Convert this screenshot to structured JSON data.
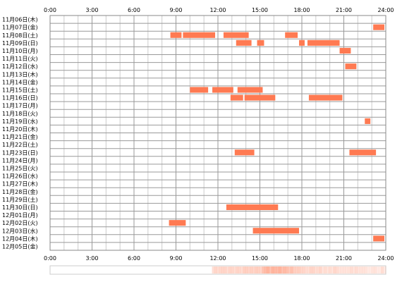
{
  "chart_data": {
    "type": "timeline",
    "x_unit": "hour",
    "x_range": [
      0,
      24
    ],
    "x_ticks": [
      "0:00",
      "3:00",
      "6:00",
      "9:00",
      "12:00",
      "15:00",
      "18:00",
      "21:00",
      "24:00"
    ],
    "rows": [
      {
        "label": "11月06日(木)",
        "segments": []
      },
      {
        "label": "11月07日(金)",
        "segments": [
          [
            23.1,
            23.9
          ]
        ]
      },
      {
        "label": "11月08日(土)",
        "segments": [
          [
            8.6,
            9.4
          ],
          [
            9.5,
            11.8
          ],
          [
            12.4,
            14.2
          ],
          [
            16.8,
            17.7
          ]
        ]
      },
      {
        "label": "11月09日(日)",
        "segments": [
          [
            13.3,
            14.4
          ],
          [
            14.8,
            15.3
          ],
          [
            17.8,
            18.2
          ],
          [
            18.4,
            20.7
          ]
        ]
      },
      {
        "label": "11月10日(月)",
        "segments": [
          [
            20.7,
            21.5
          ]
        ]
      },
      {
        "label": "11月11日(火)",
        "segments": []
      },
      {
        "label": "11月12日(水)",
        "segments": [
          [
            21.1,
            21.9
          ]
        ]
      },
      {
        "label": "11月13日(木)",
        "segments": []
      },
      {
        "label": "11月14日(金)",
        "segments": []
      },
      {
        "label": "11月15日(土)",
        "segments": [
          [
            10.0,
            11.3
          ],
          [
            11.6,
            13.1
          ],
          [
            13.4,
            15.2
          ]
        ]
      },
      {
        "label": "11月16日(日)",
        "segments": [
          [
            12.9,
            13.8
          ],
          [
            13.9,
            16.1
          ],
          [
            18.5,
            20.9
          ]
        ]
      },
      {
        "label": "11月17日(月)",
        "segments": []
      },
      {
        "label": "11月18日(火)",
        "segments": []
      },
      {
        "label": "11月19日(水)",
        "segments": [
          [
            22.5,
            22.9
          ]
        ]
      },
      {
        "label": "11月20日(木)",
        "segments": []
      },
      {
        "label": "11月21日(金)",
        "segments": []
      },
      {
        "label": "11月22日(土)",
        "segments": []
      },
      {
        "label": "11月23日(日)",
        "segments": [
          [
            13.2,
            14.6
          ],
          [
            21.4,
            23.3
          ]
        ]
      },
      {
        "label": "11月24日(月)",
        "segments": []
      },
      {
        "label": "11月25日(火)",
        "segments": []
      },
      {
        "label": "11月26日(水)",
        "segments": []
      },
      {
        "label": "11月27日(木)",
        "segments": []
      },
      {
        "label": "11月28日(金)",
        "segments": []
      },
      {
        "label": "11月29日(土)",
        "segments": []
      },
      {
        "label": "11月30日(日)",
        "segments": [
          [
            12.6,
            16.3
          ]
        ]
      },
      {
        "label": "12月01日(月)",
        "segments": []
      },
      {
        "label": "12月02日(火)",
        "segments": [
          [
            8.5,
            9.7
          ]
        ]
      },
      {
        "label": "12月03日(水)",
        "segments": [
          [
            14.5,
            17.8
          ]
        ]
      },
      {
        "label": "12月04日(木)",
        "segments": [
          [
            23.1,
            23.9
          ]
        ]
      },
      {
        "label": "12月05日(金)",
        "segments": []
      }
    ],
    "density": [
      0,
      0,
      0,
      0,
      0,
      0,
      0,
      0,
      0,
      0,
      0,
      0,
      0,
      0,
      0,
      0,
      0,
      0,
      0,
      0,
      0,
      0,
      0,
      0,
      0,
      0,
      0,
      0,
      0,
      0,
      0,
      0,
      0,
      0,
      0,
      0,
      0,
      0,
      0,
      0,
      0,
      0,
      0,
      0,
      0,
      0,
      0,
      0,
      0,
      0,
      0,
      0,
      0,
      0,
      0,
      0,
      0,
      0,
      0,
      0,
      0,
      0,
      0,
      0,
      0,
      0,
      0,
      0,
      0.25,
      0.3,
      0.25,
      0.3,
      0.3,
      0.3,
      0.25,
      0.3,
      0.3,
      0.25,
      0.3,
      0.3,
      0.25,
      0.35,
      0.35,
      0.3,
      0.35,
      0.3,
      0.35,
      0.35,
      0.3,
      0.45,
      0.5,
      0.55,
      0.45,
      0.55,
      0.5,
      0.5,
      0.55,
      0.45,
      0.5,
      0.45,
      0.4,
      0.45,
      0.35,
      0.35,
      0.35,
      0.3,
      0.3,
      0.25,
      0.25,
      0.3,
      0.3,
      0.25,
      0.25,
      0.3,
      0.2,
      0.25,
      0.2,
      0.25,
      0.2,
      0.3,
      0.25,
      0.2,
      0.2,
      0.2,
      0.2,
      0.2,
      0.25,
      0.2,
      0.25,
      0.2,
      0.2,
      0.2,
      0.2,
      0.15,
      0.15,
      0.2,
      0.2,
      0.15,
      0.15,
      0.25,
      0.15
    ],
    "colors": {
      "bar": "#ff7a52",
      "bar_light": "#ffb79a",
      "grid_major": "#999999",
      "grid_minor": "#cccccc",
      "frame": "#888888",
      "density_base": "#ffe6dc"
    }
  }
}
